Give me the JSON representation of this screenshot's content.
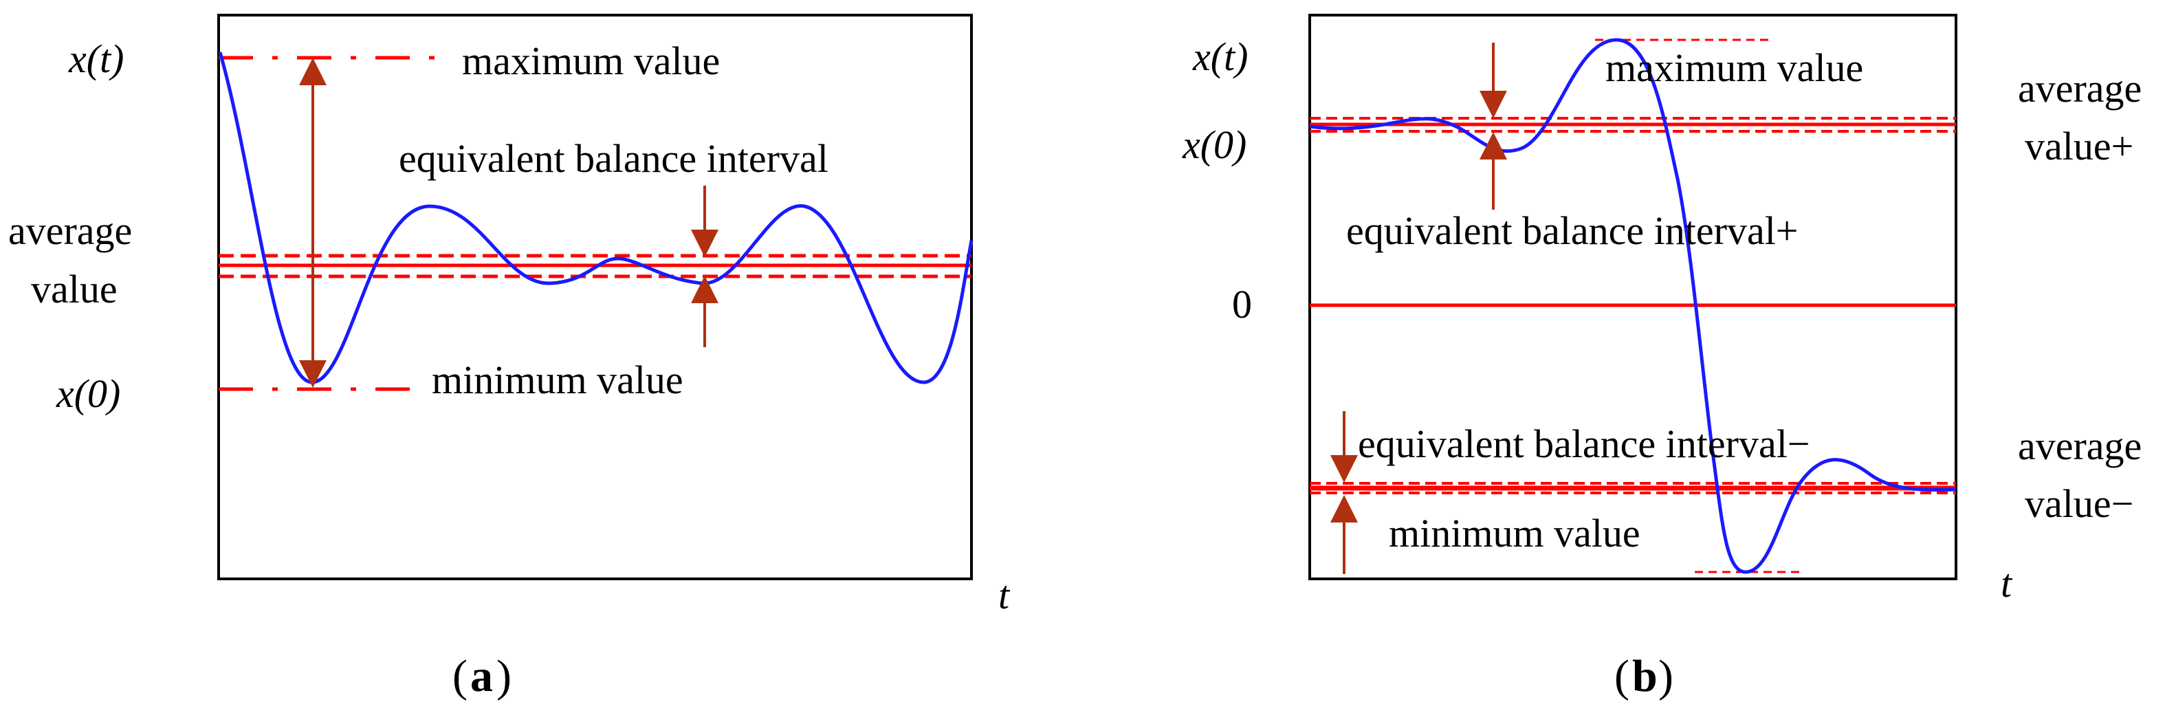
{
  "panels": [
    {
      "id": "a",
      "caption_letter": "a",
      "ylabel_top": "x(t)",
      "ylabel_avg_line1": "average",
      "ylabel_avg_line2": "value",
      "ylabel_x0": "x(0)",
      "xlabel": "t",
      "annotations": {
        "maximum": "maximum value",
        "equivalent_balance_interval": "equivalent balance interval",
        "minimum": "minimum value"
      }
    },
    {
      "id": "b",
      "caption_letter": "b",
      "ylabel_top": "x(t)",
      "ylabel_x0": "x(0)",
      "ylabel_zero": "0",
      "xlabel": "t",
      "right_labels": {
        "avg_plus_line1": "average",
        "avg_plus_line2": "value+",
        "avg_minus_line1": "average",
        "avg_minus_line2": "value−"
      },
      "annotations": {
        "maximum": "maximum value",
        "equivalent_balance_interval_plus": "equivalent balance interval+",
        "equivalent_balance_interval_minus": "equivalent balance interval−",
        "minimum": "minimum value"
      }
    }
  ],
  "colors": {
    "signal": "#1a1aff",
    "reference": "#ff0000",
    "arrow": "#b03010",
    "frame": "#000000"
  }
}
